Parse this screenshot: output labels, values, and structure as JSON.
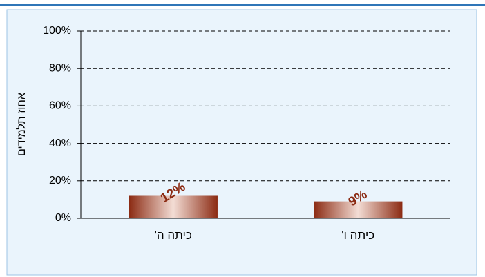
{
  "chart_data": {
    "type": "bar",
    "y_label": "אחוז תלמידים",
    "categories": [
      "כיתה ה'",
      "כיתה ו'"
    ],
    "values": [
      12,
      9
    ],
    "value_labels": [
      "12%",
      "9%"
    ],
    "color": "#8b2a12",
    "ylim": [
      0,
      100
    ],
    "yticks": [
      {
        "value": 0,
        "label": "0%"
      },
      {
        "value": 20,
        "label": "20%"
      },
      {
        "value": 40,
        "label": "40%"
      },
      {
        "value": 60,
        "label": "60%"
      },
      {
        "value": 80,
        "label": "80%"
      },
      {
        "value": 100,
        "label": "100%"
      }
    ],
    "grid": true
  }
}
